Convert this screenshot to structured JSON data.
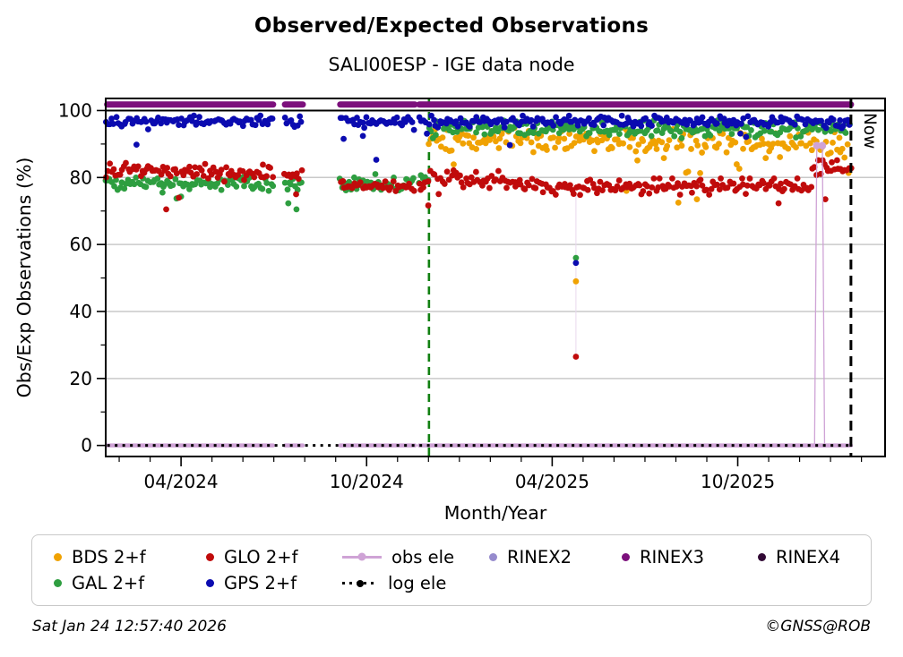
{
  "page": {
    "title": "Observed/Expected Observations",
    "subtitle": "SALI00ESP - IGE data node",
    "footer_left": "Sat Jan 24 12:57:40 2026",
    "footer_right": "©GNSS@ROB"
  },
  "chart_data": {
    "type": "scatter",
    "title": "Observed/Expected Observations",
    "subtitle": "SALI00ESP - IGE data node",
    "xlabel": "Month/Year",
    "ylabel": "Obs/Exp Observations (%)",
    "x_unit": "decimal_year",
    "xlim": [
      2024.047,
      2026.147
    ],
    "ylim": [
      -3.3,
      103.6
    ],
    "grid": "horizontal-light",
    "legend_position": "bottom",
    "x_major_ticks": [
      {
        "x": 2024.25,
        "label": "04/2024"
      },
      {
        "x": 2024.75,
        "label": "10/2024"
      },
      {
        "x": 2025.25,
        "label": "04/2025"
      },
      {
        "x": 2025.75,
        "label": "10/2025"
      }
    ],
    "y_major_ticks": [
      0,
      20,
      40,
      60,
      80,
      100
    ],
    "y_minor_ticks": [
      10,
      30,
      50,
      70,
      90
    ],
    "colors": {
      "grid": "#c9c9c9",
      "hundred_line": "#000000",
      "spine": "#000000",
      "event_line": "#118011",
      "now_line": "#000000",
      "annotation_line": "#e8d8ee"
    },
    "now_line": {
      "x": 2026.055,
      "label": "Now",
      "style": "dashed"
    },
    "event_line": {
      "x": 2024.918,
      "style": "dashed"
    },
    "data_gaps": [
      [
        2024.498,
        2024.53
      ],
      [
        2024.578,
        2024.679
      ],
      [
        2024.88,
        2024.892
      ]
    ],
    "annotation_lines": [
      {
        "x": 2025.314,
        "y0": 26.5,
        "y1": 78,
        "width": 1
      }
    ],
    "series": [
      {
        "name": "BDS 2+f",
        "color": "#f0a202",
        "type": "scatter",
        "segments": [
          {
            "x0": 2024.918,
            "x1": 2025.5,
            "mean": 91.3,
            "spread": 1.7
          },
          {
            "x0": 2025.5,
            "x1": 2026.055,
            "mean": 90.2,
            "spread": 2.0
          }
        ],
        "outlier_chance": 0.05,
        "outlier_drop": [
          2,
          9
        ],
        "clamp_max": 95.5,
        "explicit_points": [
          [
            2025.314,
            49
          ],
          [
            2025.45,
            76
          ],
          [
            2025.59,
            72.5
          ],
          [
            2025.64,
            73.5
          ]
        ]
      },
      {
        "name": "GAL 2+f",
        "color": "#2e9e40",
        "type": "scatter",
        "segments": [
          {
            "x0": 2024.047,
            "x1": 2024.498,
            "mean": 78.2,
            "spread": 1.0
          },
          {
            "x0": 2024.53,
            "x1": 2024.578,
            "mean": 78.2,
            "spread": 1.0
          },
          {
            "x0": 2024.679,
            "x1": 2024.88,
            "mean": 78.6,
            "spread": 1.1
          },
          {
            "x0": 2024.892,
            "x1": 2024.918,
            "mean": 79.0,
            "spread": 1.0
          },
          {
            "x0": 2024.918,
            "x1": 2026.055,
            "mean": 94.4,
            "spread": 1.2
          }
        ],
        "outlier_chance": 0.018,
        "outlier_drop": [
          2,
          7
        ],
        "clamp_max": 97.2,
        "explicit_points": [
          [
            2025.314,
            56
          ],
          [
            2024.2,
            75.5
          ],
          [
            2024.25,
            74.3
          ],
          [
            2024.539,
            72.3
          ],
          [
            2024.561,
            70.5
          ]
        ]
      },
      {
        "name": "GLO 2+f",
        "color": "#c00b0b",
        "type": "scatter",
        "segments": [
          {
            "x0": 2024.047,
            "x1": 2024.25,
            "mean": 82.2,
            "spread": 1.2
          },
          {
            "x0": 2024.25,
            "x1": 2024.498,
            "mean": 81.4,
            "spread": 1.2
          },
          {
            "x0": 2024.53,
            "x1": 2024.578,
            "mean": 81.2,
            "spread": 1.1
          },
          {
            "x0": 2024.679,
            "x1": 2024.88,
            "mean": 77.6,
            "spread": 1.0
          },
          {
            "x0": 2024.892,
            "x1": 2024.918,
            "mean": 78.5,
            "spread": 1.0
          },
          {
            "x0": 2024.918,
            "x1": 2025.15,
            "mean": 79.5,
            "spread": 1.2
          },
          {
            "x0": 2025.15,
            "x1": 2025.95,
            "mean": 77.3,
            "spread": 1.1
          },
          {
            "x0": 2025.95,
            "x1": 2026.055,
            "mean": 82.3,
            "spread": 1.3
          }
        ],
        "outlier_chance": 0.012,
        "outlier_drop": [
          2,
          7
        ],
        "clamp_max": 85.5,
        "explicit_points": [
          [
            2025.314,
            26.5
          ],
          [
            2024.21,
            70.5
          ],
          [
            2024.56,
            75
          ],
          [
            2025.86,
            72.3
          ],
          [
            2025.986,
            73.5
          ]
        ]
      },
      {
        "name": "GPS 2+f",
        "color": "#0b0bb0",
        "type": "scatter",
        "segments": [
          {
            "x0": 2024.047,
            "x1": 2024.498,
            "mean": 96.9,
            "spread": 0.75
          },
          {
            "x0": 2024.53,
            "x1": 2024.578,
            "mean": 96.6,
            "spread": 0.75
          },
          {
            "x0": 2024.679,
            "x1": 2024.88,
            "mean": 96.6,
            "spread": 0.8
          },
          {
            "x0": 2024.892,
            "x1": 2026.055,
            "mean": 96.7,
            "spread": 0.8
          }
        ],
        "outlier_chance": 0.035,
        "outlier_drop": [
          1.5,
          7
        ],
        "clamp_max": 98.6,
        "explicit_points": [
          [
            2025.314,
            54.5
          ],
          [
            2024.13,
            89.8
          ],
          [
            2024.74,
            92.4
          ],
          [
            2024.776,
            85.3
          ]
        ]
      },
      {
        "name": "obs ele",
        "color": "#cfa3d6",
        "type": "baseline-spike",
        "base": 0,
        "respect_gaps": true,
        "linewidth": 4.5,
        "spikes": [
          [
            2025.963,
            89.5
          ],
          [
            2025.978,
            89.5
          ]
        ]
      },
      {
        "name": "log ele",
        "color": "#000000",
        "type": "dotted-baseline",
        "base": 0,
        "respect_gaps": false,
        "linewidth": 3
      },
      {
        "name": "RINEX2",
        "color": "#968bcd",
        "type": "none"
      },
      {
        "name": "RINEX3",
        "color": "#7c107c",
        "type": "band",
        "y": 101.8,
        "respect_gaps": true,
        "linewidth": 7
      },
      {
        "name": "RINEX4",
        "color": "#320a35",
        "type": "none"
      }
    ],
    "legend": {
      "rows": [
        [
          {
            "label": "BDS 2+f",
            "color": "#f0a202",
            "marker": "dot",
            "icon": "bds-dot-icon"
          },
          {
            "label": "GLO 2+f",
            "color": "#c00b0b",
            "marker": "dot",
            "icon": "glo-dot-icon"
          },
          {
            "label": "obs ele",
            "color": "#cfa3d6",
            "marker": "line-dot",
            "icon": "obs-ele-line-icon"
          },
          {
            "label": "RINEX2",
            "color": "#968bcd",
            "marker": "dot",
            "icon": "rinex2-dot-icon"
          },
          {
            "label": "RINEX3",
            "color": "#7c107c",
            "marker": "dot",
            "icon": "rinex3-dot-icon"
          },
          {
            "label": "RINEX4",
            "color": "#320a35",
            "marker": "dot",
            "icon": "rinex4-dot-icon"
          }
        ],
        [
          {
            "label": "GAL 2+f",
            "color": "#2e9e40",
            "marker": "dot",
            "icon": "gal-dot-icon"
          },
          {
            "label": "GPS 2+f",
            "color": "#0b0bb0",
            "marker": "dot",
            "icon": "gps-dot-icon"
          },
          {
            "label": "log ele",
            "color": "#000000",
            "marker": "dotted-line-dot",
            "icon": "log-ele-line-icon"
          }
        ]
      ]
    }
  }
}
